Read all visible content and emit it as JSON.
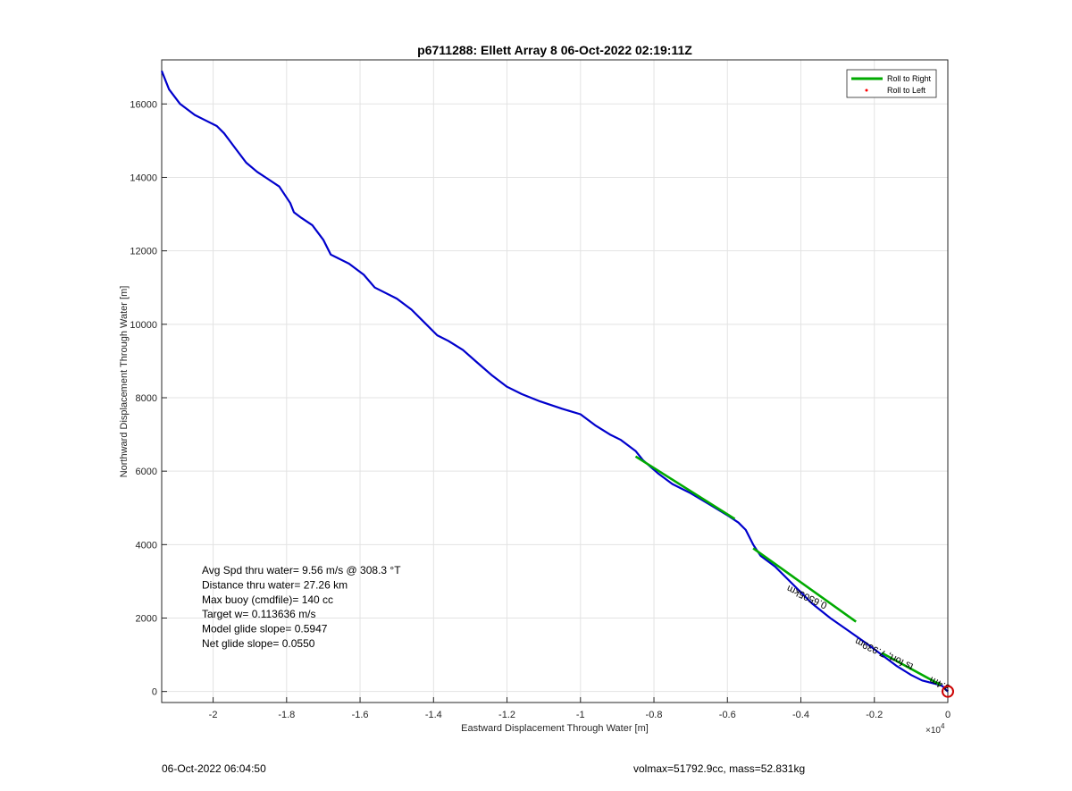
{
  "chart_data": {
    "type": "line",
    "title": "p6711288: Ellett Array 8 06-Oct-2022 02:19:11Z",
    "xlabel": "Eastward Displacement Through Water [m]",
    "ylabel": "Northward Displacement Through Water [m]",
    "x_exponent_label": "×10",
    "x_exponent_power": "4",
    "xlim": [
      -21400,
      0
    ],
    "ylim": [
      -300,
      17200
    ],
    "grid": true,
    "legend_position": "top-right",
    "x_ticks": [
      {
        "value": -20000,
        "label": "-2"
      },
      {
        "value": -18000,
        "label": "-1.8"
      },
      {
        "value": -16000,
        "label": "-1.6"
      },
      {
        "value": -14000,
        "label": "-1.4"
      },
      {
        "value": -12000,
        "label": "-1.2"
      },
      {
        "value": -10000,
        "label": "-1"
      },
      {
        "value": -8000,
        "label": "-0.8"
      },
      {
        "value": -6000,
        "label": "-0.6"
      },
      {
        "value": -4000,
        "label": "-0.4"
      },
      {
        "value": -2000,
        "label": "-0.2"
      },
      {
        "value": 0,
        "label": "0"
      }
    ],
    "y_ticks": [
      {
        "value": 0,
        "label": "0"
      },
      {
        "value": 2000,
        "label": "2000"
      },
      {
        "value": 4000,
        "label": "4000"
      },
      {
        "value": 6000,
        "label": "6000"
      },
      {
        "value": 8000,
        "label": "8000"
      },
      {
        "value": 10000,
        "label": "10000"
      },
      {
        "value": 12000,
        "label": "12000"
      },
      {
        "value": 14000,
        "label": "14000"
      },
      {
        "value": 16000,
        "label": "16000"
      }
    ],
    "legend": [
      {
        "label": "Roll to Right",
        "color": "#00aa00",
        "style": "line"
      },
      {
        "label": "Roll to Left",
        "color": "#ff0000",
        "style": "dot"
      }
    ],
    "series": [
      {
        "color": "#0000cc",
        "x": [
          -21400,
          -21200,
          -20900,
          -20500,
          -20200,
          -19900,
          -19700,
          -19400,
          -19100,
          -18800,
          -18500,
          -18200,
          -17900,
          -17800,
          -17600,
          -17300,
          -17000,
          -16800,
          -16600,
          -16300,
          -15900,
          -15600,
          -15400,
          -15000,
          -14600,
          -14200,
          -13900,
          -13600,
          -13200,
          -12800,
          -12400,
          -12000,
          -11600,
          -11100,
          -10500,
          -10000,
          -9600,
          -9200,
          -8900,
          -8500,
          -8300,
          -7900,
          -7500,
          -7000,
          -6500,
          -6000,
          -5700,
          -5500,
          -5300,
          -5100,
          -4700,
          -4200,
          -3700,
          -3200,
          -2700,
          -2200,
          -1800,
          -1400,
          -1000,
          -700,
          -500,
          -300,
          -150,
          0
        ],
        "y": [
          16900,
          16400,
          16000,
          15700,
          15550,
          15400,
          15200,
          14800,
          14400,
          14150,
          13950,
          13750,
          13300,
          13050,
          12900,
          12700,
          12300,
          11900,
          11800,
          11650,
          11350,
          11000,
          10900,
          10700,
          10400,
          10000,
          9700,
          9550,
          9300,
          8950,
          8600,
          8300,
          8100,
          7900,
          7700,
          7550,
          7250,
          7000,
          6850,
          6550,
          6300,
          5950,
          5650,
          5400,
          5100,
          4800,
          4600,
          4400,
          4000,
          3700,
          3400,
          2900,
          2400,
          2000,
          1650,
          1300,
          1000,
          700,
          450,
          300,
          250,
          200,
          150,
          0
        ]
      },
      {
        "name": "Roll to Right",
        "color": "#00aa00",
        "x": [
          -8500,
          -5800
        ],
        "y": [
          6400,
          4700
        ]
      },
      {
        "name": "Roll to Right",
        "color": "#00aa00",
        "x": [
          -5300,
          -2500
        ],
        "y": [
          3900,
          1900
        ]
      },
      {
        "name": "Roll to Right",
        "color": "#00aa00",
        "x": [
          -1800,
          -200
        ],
        "y": [
          1050,
          180
        ]
      }
    ],
    "annotations": [
      "Avg Spd thru water=  9.56 m/s @ 308.3 °T",
      "Distance thru water= 27.26 km",
      "Max buoy (cmdfile)= 140 cc",
      "Target w= 0.113636 m/s",
      "Model glide slope= 0.5947",
      "Net glide slope= 0.0550"
    ],
    "rotated_annotations": [
      {
        "text": "0.6505km",
        "x": -3800,
        "y": 2650
      },
      {
        "text": "ts fort, 7.939m",
        "x": -1700,
        "y": 1100
      },
      {
        "text": "3.4m",
        "x": -180,
        "y": 280
      }
    ],
    "markers": [
      {
        "x": 0,
        "y": 0,
        "color": "#cc0000",
        "shape": "circle"
      }
    ]
  },
  "footer": {
    "timestamp": "06-Oct-2022 06:04:50",
    "summary": "volmax=51792.9cc, mass=52.831kg"
  }
}
